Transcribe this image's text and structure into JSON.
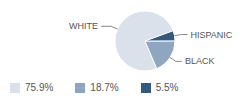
{
  "chart_data": {
    "type": "pie",
    "categories": [
      "WHITE",
      "BLACK",
      "HISPANIC"
    ],
    "values": [
      75.9,
      18.7,
      5.5
    ],
    "value_labels": [
      "75.9%",
      "18.7%",
      "5.5%"
    ],
    "colors": [
      "#dae1ea",
      "#8ea6bf",
      "#335a7e"
    ],
    "legend": "bottom"
  }
}
